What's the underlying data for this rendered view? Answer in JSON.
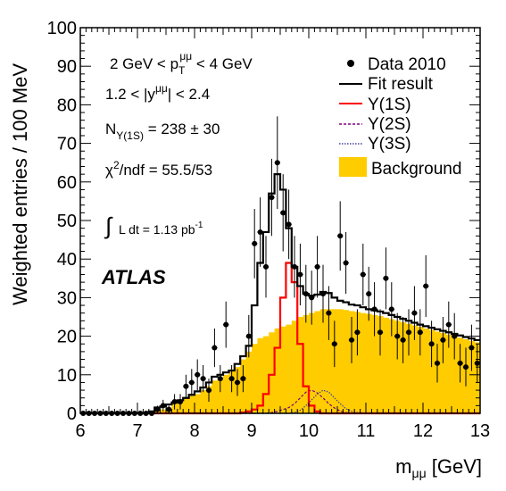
{
  "chart_data": {
    "type": "histogram",
    "title": "",
    "xlabel": "m_μμ [GeV]",
    "ylabel": "Weighted entries / 100 MeV",
    "xlim": [
      6,
      13
    ],
    "ylim": [
      0,
      100
    ],
    "x_ticks": [
      "6",
      "7",
      "8",
      "9",
      "10",
      "11",
      "12",
      "13"
    ],
    "y_ticks": [
      "0",
      "10",
      "20",
      "30",
      "40",
      "50",
      "60",
      "70",
      "80",
      "90",
      "100"
    ],
    "bin_width": 0.1,
    "annotations": {
      "pt_range": "2 GeV < p_T^μμ < 4 GeV",
      "y_range": "1.2 < |y^μμ| < 2.4",
      "yield": "N_Υ(1S) = 238 ± 30",
      "chi2": "χ²/ndf = 55.5/53",
      "lumi": "∫ L dt = 1.13 pb⁻¹",
      "experiment": "ATLAS"
    },
    "legend": {
      "position": "top-right",
      "entries": [
        "Data 2010",
        "Fit result",
        "Υ(1S)",
        "Υ(2S)",
        "Υ(3S)",
        "Background"
      ]
    },
    "colors": {
      "background_fill": "#ffcc00",
      "fit_line": "#000000",
      "ups1s_line": "#ff0000",
      "ups2s_line": "#800080",
      "ups3s_line": "#4040a0",
      "data_marker": "#000000"
    },
    "data_points": {
      "x": [
        6.05,
        6.15,
        6.25,
        6.35,
        6.45,
        6.55,
        6.65,
        6.75,
        6.85,
        6.95,
        7.05,
        7.15,
        7.25,
        7.35,
        7.45,
        7.55,
        7.65,
        7.75,
        7.85,
        7.95,
        8.05,
        8.15,
        8.25,
        8.35,
        8.45,
        8.55,
        8.65,
        8.75,
        8.85,
        8.95,
        9.05,
        9.15,
        9.25,
        9.35,
        9.45,
        9.55,
        9.65,
        9.75,
        9.85,
        9.95,
        10.05,
        10.15,
        10.25,
        10.35,
        10.45,
        10.55,
        10.65,
        10.75,
        10.85,
        10.95,
        11.05,
        11.15,
        11.25,
        11.35,
        11.45,
        11.55,
        11.65,
        11.75,
        11.85,
        11.95,
        12.05,
        12.15,
        12.25,
        12.35,
        12.45,
        12.55,
        12.65,
        12.75,
        12.85,
        12.95
      ],
      "y": [
        0,
        0,
        0,
        0,
        0,
        0,
        0,
        0,
        0,
        0,
        0,
        0,
        0,
        1,
        2,
        1,
        3,
        3,
        7,
        8,
        10,
        9,
        6,
        17,
        9,
        23,
        9,
        8,
        9,
        20,
        44,
        47,
        38,
        56,
        65,
        52,
        49,
        38,
        36,
        31,
        30,
        38,
        31,
        26,
        18,
        46,
        39,
        19,
        21,
        36,
        31,
        27,
        21,
        35,
        27,
        20,
        19,
        21,
        26,
        21,
        33,
        18,
        13,
        19,
        23,
        20,
        13,
        12,
        17,
        13
      ],
      "err": [
        0,
        0,
        0,
        0,
        0,
        0,
        0,
        0,
        0,
        0,
        0,
        0,
        0,
        1,
        1.5,
        1,
        2,
        2,
        3,
        3.5,
        4,
        3.5,
        3,
        5,
        3.5,
        6,
        3.5,
        3.5,
        3.5,
        5.5,
        9,
        9,
        8,
        10,
        12,
        10,
        9,
        8,
        8,
        7.5,
        7,
        8,
        7.5,
        7,
        6,
        9,
        8,
        6,
        6,
        8,
        7,
        7,
        6,
        8,
        7,
        6,
        6,
        6,
        7,
        6,
        8,
        6,
        5,
        6,
        6,
        6,
        5,
        5,
        6,
        5
      ]
    },
    "fit_result": [
      0,
      0,
      0,
      0,
      0,
      0,
      0,
      0,
      0,
      0,
      0,
      0,
      0.5,
      1.5,
      1.8,
      2.3,
      2.8,
      3.4,
      4,
      4.8,
      5.7,
      6.7,
      8,
      9.5,
      10,
      10.6,
      11.1,
      12.8,
      14.8,
      17.5,
      28,
      39,
      47,
      57,
      62,
      58,
      48,
      38,
      33,
      31,
      30.5,
      30.8,
      31.5,
      31.2,
      30,
      29.2,
      28.8,
      28.2,
      28,
      27.5,
      27,
      26.7,
      26.4,
      26,
      25.5,
      25,
      24.5,
      24,
      23.5,
      23,
      22.6,
      22.2,
      21.8,
      21.4,
      21,
      20.6,
      20.2,
      19.8,
      19.4,
      19
    ],
    "ups1s": [
      0,
      0,
      0,
      0,
      0,
      0,
      0,
      0,
      0,
      0,
      0,
      0,
      0,
      0,
      0,
      0,
      0,
      0,
      0,
      0,
      0,
      0,
      0,
      0,
      0,
      0,
      0,
      0,
      0.2,
      0.5,
      1,
      2,
      5,
      10,
      17,
      30,
      39,
      34,
      18,
      7,
      2,
      0.5,
      0,
      0,
      0,
      0,
      0,
      0,
      0,
      0,
      0,
      0,
      0,
      0,
      0,
      0,
      0,
      0,
      0,
      0,
      0,
      0,
      0,
      0,
      0,
      0,
      0,
      0,
      0,
      0
    ],
    "ups2s": [
      0,
      0,
      0,
      0,
      0,
      0,
      0,
      0,
      0,
      0,
      0,
      0,
      0,
      0,
      0,
      0,
      0,
      0,
      0,
      0,
      0,
      0,
      0,
      0,
      0,
      0,
      0,
      0,
      0,
      0,
      0,
      0,
      0,
      0.2,
      0.5,
      1,
      1.5,
      2.5,
      4,
      5.5,
      6,
      5.3,
      4,
      2.5,
      1.4,
      0.6,
      0.2,
      0,
      0,
      0,
      0,
      0,
      0,
      0,
      0,
      0,
      0,
      0,
      0,
      0,
      0,
      0,
      0,
      0,
      0,
      0,
      0,
      0,
      0,
      0
    ],
    "ups3s": [
      0,
      0,
      0,
      0,
      0,
      0,
      0,
      0,
      0,
      0,
      0,
      0,
      0,
      0,
      0,
      0,
      0,
      0,
      0,
      0,
      0,
      0,
      0,
      0,
      0,
      0,
      0,
      0,
      0,
      0,
      0,
      0,
      0,
      0,
      0,
      0,
      0,
      0.2,
      0.8,
      2,
      3.5,
      5,
      6,
      5.5,
      4,
      2.5,
      1.2,
      0.5,
      0.2,
      0,
      0,
      0,
      0,
      0,
      0,
      0,
      0,
      0,
      0,
      0,
      0,
      0,
      0,
      0,
      0,
      0,
      0,
      0,
      0,
      0
    ],
    "background": [
      0,
      0,
      0,
      0,
      0,
      0,
      0,
      0,
      0,
      0,
      0,
      0,
      0,
      0.5,
      1,
      1.5,
      3,
      3,
      4,
      4.5,
      5,
      6,
      7,
      8.5,
      9,
      10,
      11,
      12,
      14,
      16,
      18,
      19.5,
      20,
      21,
      22,
      22.5,
      23,
      24,
      25,
      25.5,
      26,
      26.5,
      27,
      27,
      27,
      27,
      26.8,
      26.5,
      26.3,
      26,
      25.8,
      25.5,
      25.2,
      24.8,
      24.4,
      24,
      23.6,
      23.2,
      22.8,
      22.4,
      22,
      21.6,
      21.2,
      20.8,
      20.4,
      20,
      19.6,
      19.2,
      18.8,
      18.4
    ]
  }
}
